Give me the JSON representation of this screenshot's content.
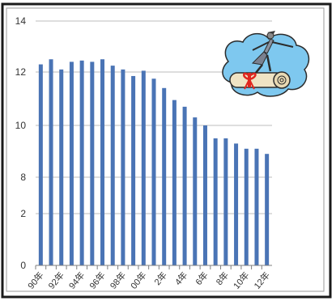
{
  "chart_data": {
    "type": "bar",
    "title": "",
    "xlabel": "",
    "ylabel": "",
    "y_tick_labels": [
      "0",
      "2",
      "8",
      "10",
      "12",
      "14"
    ],
    "categories": [
      "90年",
      "",
      "92年",
      "",
      "94年",
      "",
      "96年",
      "",
      "98年",
      "",
      "00年",
      "",
      "2年",
      "",
      "4年",
      "",
      "6年",
      "",
      "8年",
      "",
      "10年",
      "",
      "12年"
    ],
    "values": [
      12.3,
      12.5,
      12.1,
      12.4,
      12.45,
      12.4,
      12.5,
      12.25,
      12.1,
      11.85,
      12.05,
      11.75,
      11.4,
      10.95,
      10.7,
      10.3,
      10.0,
      9.5,
      9.5,
      9.3,
      9.1,
      9.1,
      8.9
    ],
    "colors": {
      "bar": "#4a74b5",
      "grid": "#bdbdbd"
    },
    "grid": true,
    "legend": "none",
    "illustration": "person-surfing-on-diploma-scroll"
  }
}
